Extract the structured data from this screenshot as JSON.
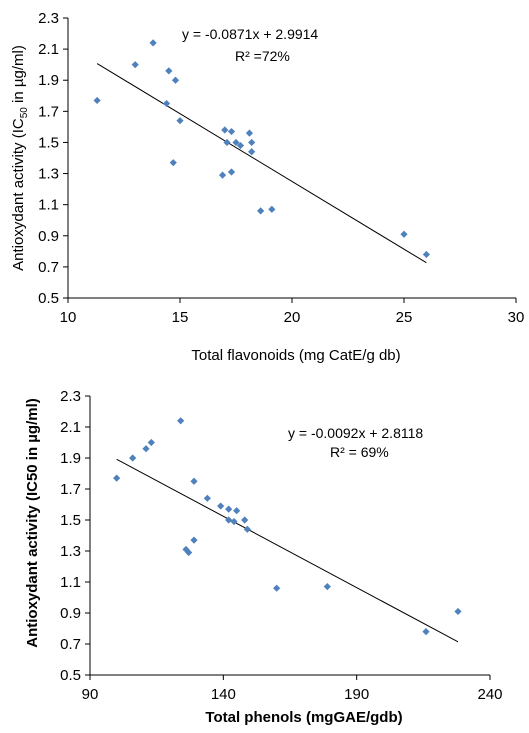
{
  "chart_data": [
    {
      "type": "scatter",
      "xlabel": "Total flavonoids (mg CatE/g db)",
      "ylabel_main": "Antioxydant activity (IC",
      "ylabel_sub": "50",
      "ylabel_end": " in µg/ml)",
      "xlim": [
        10,
        30
      ],
      "ylim": [
        0.5,
        2.3
      ],
      "xticks": [
        10,
        15,
        20,
        25,
        30
      ],
      "xtick_labels": [
        "10",
        "15",
        "20",
        "25",
        "30"
      ],
      "yticks": [
        0.5,
        0.7,
        0.9,
        1.1,
        1.3,
        1.5,
        1.7,
        1.9,
        2.1,
        2.3
      ],
      "ytick_labels": [
        "0.5",
        "0.7",
        "0.9",
        "1.1",
        "1.3",
        "1.5",
        "1.7",
        "1.9",
        "2.1",
        "2.3"
      ],
      "equation": "y = -0.0871x + 2.9914",
      "r2": "R² =72%",
      "trendline": {
        "slope": -0.0871,
        "intercept": 2.9914,
        "x_range": [
          11.3,
          26
        ]
      },
      "color": "#4f81bd",
      "points": [
        {
          "x": 11.3,
          "y": 1.77
        },
        {
          "x": 13.0,
          "y": 2.0
        },
        {
          "x": 13.8,
          "y": 2.14
        },
        {
          "x": 14.5,
          "y": 1.96
        },
        {
          "x": 14.8,
          "y": 1.9
        },
        {
          "x": 14.4,
          "y": 1.75
        },
        {
          "x": 15.0,
          "y": 1.64
        },
        {
          "x": 14.7,
          "y": 1.37
        },
        {
          "x": 17.0,
          "y": 1.58
        },
        {
          "x": 17.3,
          "y": 1.57
        },
        {
          "x": 17.1,
          "y": 1.5
        },
        {
          "x": 17.5,
          "y": 1.5
        },
        {
          "x": 17.7,
          "y": 1.48
        },
        {
          "x": 18.1,
          "y": 1.56
        },
        {
          "x": 18.2,
          "y": 1.5
        },
        {
          "x": 18.2,
          "y": 1.44
        },
        {
          "x": 16.9,
          "y": 1.29
        },
        {
          "x": 17.3,
          "y": 1.31
        },
        {
          "x": 18.6,
          "y": 1.06
        },
        {
          "x": 19.1,
          "y": 1.07
        },
        {
          "x": 25.0,
          "y": 0.91
        },
        {
          "x": 26.0,
          "y": 0.78
        }
      ]
    },
    {
      "type": "scatter",
      "xlabel": "Total phenols (mgGAE/gdb)",
      "ylabel_main": "Antioxydant activity (IC50 in µg/ml)",
      "xlim": [
        90,
        240
      ],
      "ylim": [
        0.5,
        2.3
      ],
      "xticks": [
        90,
        140,
        190,
        240
      ],
      "xtick_labels": [
        "90",
        "140",
        "190",
        "240"
      ],
      "yticks": [
        0.5,
        0.7,
        0.9,
        1.1,
        1.3,
        1.5,
        1.7,
        1.9,
        2.1,
        2.3
      ],
      "ytick_labels": [
        "0.5",
        "0.7",
        "0.9",
        "1.1",
        "1.3",
        "1.5",
        "1.7",
        "1.9",
        "2.1",
        "2.3"
      ],
      "equation": "y = -0.0092x + 2.8118",
      "r2": "R² = 69%",
      "trendline": {
        "slope": -0.0092,
        "intercept": 2.8118,
        "x_range": [
          100,
          228
        ]
      },
      "color": "#4f81bd",
      "points": [
        {
          "x": 100,
          "y": 1.77
        },
        {
          "x": 106,
          "y": 1.9
        },
        {
          "x": 111,
          "y": 1.96
        },
        {
          "x": 113,
          "y": 2.0
        },
        {
          "x": 124,
          "y": 2.14
        },
        {
          "x": 129,
          "y": 1.75
        },
        {
          "x": 134,
          "y": 1.64
        },
        {
          "x": 139,
          "y": 1.59
        },
        {
          "x": 142,
          "y": 1.57
        },
        {
          "x": 145,
          "y": 1.56
        },
        {
          "x": 142,
          "y": 1.5
        },
        {
          "x": 144,
          "y": 1.49
        },
        {
          "x": 148,
          "y": 1.5
        },
        {
          "x": 149,
          "y": 1.44
        },
        {
          "x": 129,
          "y": 1.37
        },
        {
          "x": 126,
          "y": 1.31
        },
        {
          "x": 127,
          "y": 1.29
        },
        {
          "x": 160,
          "y": 1.06
        },
        {
          "x": 179,
          "y": 1.07
        },
        {
          "x": 216,
          "y": 0.78
        },
        {
          "x": 228,
          "y": 0.91
        }
      ]
    }
  ]
}
